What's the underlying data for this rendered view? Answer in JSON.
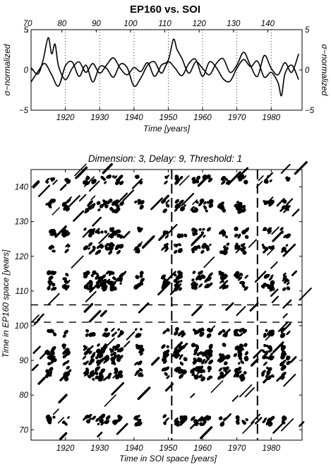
{
  "chart_data": [
    {
      "type": "line",
      "title": "EP160 vs. SOI",
      "xlabel": "Time [years]",
      "ylabel_left": "σ−normalized",
      "ylabel_right": "σ−normalized",
      "xlim": [
        1910,
        1989
      ],
      "ylim": [
        -5,
        5
      ],
      "x_ticks_bottom": [
        "1920",
        "1930",
        "1940",
        "1950",
        "1960",
        "1970",
        "1980"
      ],
      "x_ticks_top": [
        "70",
        "80",
        "90",
        "100",
        "110",
        "120",
        "130",
        "140"
      ],
      "y_ticks": [
        "5",
        "0",
        "−5"
      ],
      "grid": "dotted vertical lines at each bottom decade tick",
      "series": [
        {
          "x": [
            1910,
            1912,
            1913.5,
            1915,
            1916,
            1917,
            1918,
            1920,
            1922,
            1924,
            1926,
            1928,
            1930,
            1932,
            1934,
            1936,
            1938,
            1940,
            1942,
            1944,
            1946,
            1948,
            1950,
            1951.5,
            1952.5,
            1954,
            1956,
            1958,
            1960,
            1962,
            1964,
            1966,
            1968,
            1970,
            1972,
            1974,
            1976,
            1978,
            1980,
            1982,
            1984,
            1986,
            1988
          ],
          "values": [
            0.3,
            -0.5,
            1.2,
            4.0,
            2.0,
            3.2,
            0.5,
            -1.2,
            0.2,
            1.0,
            -0.3,
            0.8,
            -0.4,
            0.6,
            1.5,
            0.2,
            -0.6,
            0.3,
            -0.2,
            0.9,
            -0.8,
            0.6,
            1.2,
            3.8,
            2.6,
            1.4,
            -0.4,
            1.0,
            0.2,
            -0.6,
            0.8,
            1.4,
            -0.3,
            0.6,
            2.2,
            0.5,
            -0.8,
            1.8,
            0.2,
            -0.6,
            0.9,
            -0.3,
            2.0
          ]
        },
        {
          "x": [
            1910,
            1912,
            1914,
            1916,
            1918,
            1920,
            1922,
            1924,
            1926,
            1928,
            1930,
            1932,
            1934,
            1936,
            1938,
            1940,
            1942,
            1944,
            1946,
            1948,
            1950,
            1952,
            1954,
            1956,
            1958,
            1960,
            1962,
            1964,
            1966,
            1968,
            1970,
            1972,
            1974,
            1976,
            1978,
            1980,
            1982,
            1983,
            1984,
            1986,
            1988
          ],
          "values": [
            -1.5,
            -0.2,
            0.8,
            -0.6,
            -2.0,
            0.5,
            1.0,
            -0.8,
            0.6,
            -1.5,
            0.4,
            0.2,
            -0.9,
            0.7,
            0.3,
            -2.0,
            -1.0,
            0.6,
            1.0,
            -0.4,
            1.0,
            0.2,
            -0.7,
            0.8,
            1.3,
            -0.8,
            1.0,
            0.3,
            -1.1,
            -1.4,
            0.2,
            1.3,
            0.4,
            1.1,
            -0.9,
            -0.3,
            -1.6,
            -3.2,
            -0.5,
            0.6,
            -1.2
          ]
        }
      ]
    },
    {
      "type": "heatmap",
      "subtitle": "Dimension: 3, Delay: 9, Threshold: 1",
      "xlabel": "Time in SOI space [years]",
      "ylabel": "Time in EP160 space [years]",
      "xlim": [
        1910,
        1989
      ],
      "ylim": [
        67,
        145
      ],
      "x_ticks": [
        "1920",
        "1930",
        "1940",
        "1950",
        "1960",
        "1970",
        "1980"
      ],
      "y_ticks": [
        "70",
        "80",
        "90",
        "100",
        "110",
        "120",
        "130",
        "140"
      ],
      "colors": {
        "recurrence": "#000000",
        "background": "#ffffff"
      },
      "recurrence_bands": {
        "x_bands": [
          [
            1914.5,
            1917
          ],
          [
            1919.5,
            1921
          ],
          [
            1925.5,
            1928.5
          ],
          [
            1929,
            1936.5
          ],
          [
            1940.5,
            1942.5
          ],
          [
            1948.5,
            1950
          ],
          [
            1952,
            1955
          ],
          [
            1957,
            1962.5
          ],
          [
            1965,
            1967.5
          ],
          [
            1969.5,
            1973
          ],
          [
            1977.5,
            1980.5
          ],
          [
            1983,
            1985
          ]
        ],
        "y_bands": [
          [
            71.5,
            74
          ],
          [
            84.5,
            88
          ],
          [
            89,
            94.5
          ],
          [
            97,
            99
          ],
          [
            110.5,
            115.5
          ],
          [
            121,
            123.5
          ],
          [
            125.5,
            128
          ],
          [
            133,
            136
          ],
          [
            141,
            143
          ]
        ],
        "separators_x": [
          1951,
          1976
        ],
        "separators_y": [
          101,
          106
        ]
      }
    }
  ]
}
